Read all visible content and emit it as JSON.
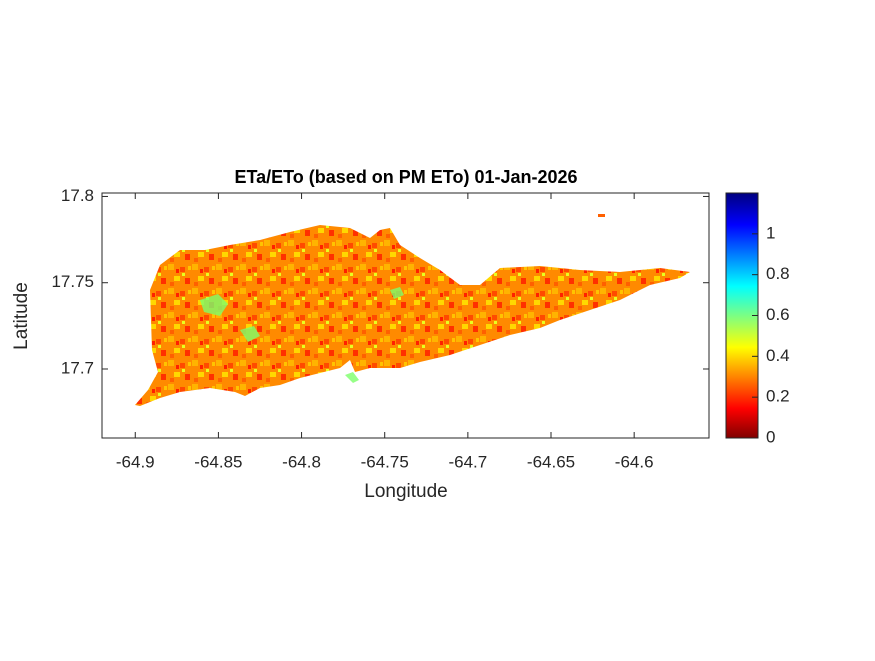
{
  "chart_data": {
    "type": "heatmap-map",
    "title": "ETa/ETo (based on PM ETo) 01-Jan-2026",
    "xlabel": "Longitude",
    "ylabel": "Latitude",
    "xlim": [
      -64.92,
      -64.555
    ],
    "xticks": [
      -64.9,
      -64.85,
      -64.8,
      -64.75,
      -64.7,
      -64.65,
      -64.6
    ],
    "ylim": [
      17.66,
      17.802
    ],
    "yticks": [
      17.7,
      17.75,
      17.8
    ],
    "clim": [
      0,
      1.2
    ],
    "cticks": [
      0,
      0.2,
      0.4,
      0.6,
      0.8,
      1
    ],
    "colormap": "jet"
  }
}
